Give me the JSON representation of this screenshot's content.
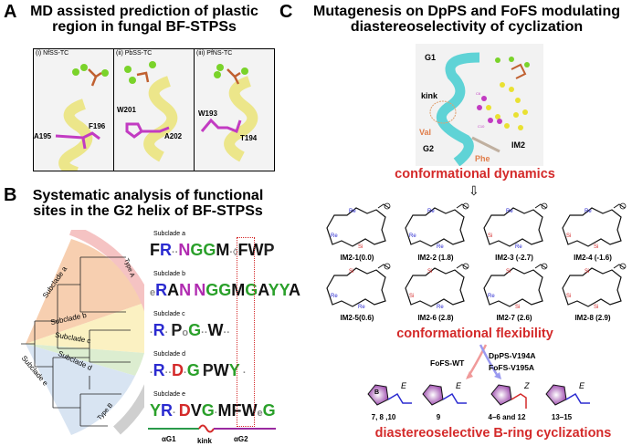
{
  "panel_a": {
    "letter": "A",
    "title": "MD assisted prediction of plastic region in fungal BF-STPSs",
    "panels": [
      {
        "title": "(i) NfSS-TC",
        "residues": [
          "A195",
          "F196"
        ]
      },
      {
        "title": "(ii) PbSS-TC",
        "residues": [
          "W201",
          "A202"
        ]
      },
      {
        "title": "(iii) PfNS-TC",
        "residues": [
          "W193",
          "T194"
        ]
      }
    ]
  },
  "panel_b": {
    "letter": "B",
    "title": "Systematic analysis of functional sites in the G2 helix of BF-STPSs",
    "tree_labels": [
      "Subclade a",
      "Subclade b",
      "Subclade c",
      "Subclade d",
      "Subclade e",
      "Type A",
      "Type B"
    ],
    "logos": [
      {
        "label": "Subclade a",
        "seq": "FR··NGGM·◊FWP"
      },
      {
        "label": "Subclade b",
        "seq": "eRAN NGGMGAYYA"
      },
      {
        "label": "Subclade c",
        "seq": "·R·  PoG··W··"
      },
      {
        "label": "Subclade d",
        "seq": "·R··D·G PWY ·"
      },
      {
        "label": "Subclade e",
        "seq": "YR· DVG·MFWeG"
      }
    ],
    "domains": [
      "αG1",
      "kink",
      "αG2"
    ]
  },
  "panel_c": {
    "letter": "C",
    "title": "Mutagenesis on  DpPS and FoFS modulating diastereoselectivity of cyclization",
    "structure_labels": {
      "g1": "G1",
      "kink": "kink",
      "g2": "G2",
      "val": "Val",
      "phe": "Phe",
      "im2": "IM2",
      "c6": "C6",
      "c10": "C10"
    },
    "dynamics": "conformational dynamics",
    "conformers": [
      "IM2-1(0.0)",
      "IM2-2 (1.8)",
      "IM2-3 (-2.7)",
      "IM2-4 (-1.6)",
      "IM2-5(0.6)",
      "IM2-6 (2.8)",
      "IM2-7 (2.6)",
      "IM2-8 (2.9)"
    ],
    "conformer_faces": [
      [
        "Re",
        "Re",
        "Si"
      ],
      [
        "Re",
        "Re",
        "Re"
      ],
      [
        "Re",
        "Si",
        "Re"
      ],
      [
        "Re",
        "Si",
        "Si"
      ],
      [
        "Si",
        "Re",
        "Re"
      ],
      [
        "Si",
        "Si",
        "Re"
      ],
      [
        "Si",
        "Re",
        "Si"
      ],
      [
        "Si",
        "Si",
        "Si"
      ]
    ],
    "flexibility": "conformational flexibility",
    "wt": "FoFS-WT",
    "mutants": [
      "DpPS-V194A",
      "FoFS-V195A"
    ],
    "products": [
      {
        "label": "7, 8 ,10",
        "geom": "E"
      },
      {
        "label": "9",
        "geom": "E"
      },
      {
        "label": "4–6 and 12",
        "geom": "Z"
      },
      {
        "label": "13–15",
        "geom": "E"
      }
    ],
    "ring_label": "B",
    "conclusion": "diastereoselective B-ring cyclizations",
    "colors": {
      "red": "#d42a2a",
      "cyan": "#5fd3d6",
      "yellow": "#f2ea8a",
      "magenta": "#c23bc2",
      "blue": "#2b2bd0"
    }
  }
}
